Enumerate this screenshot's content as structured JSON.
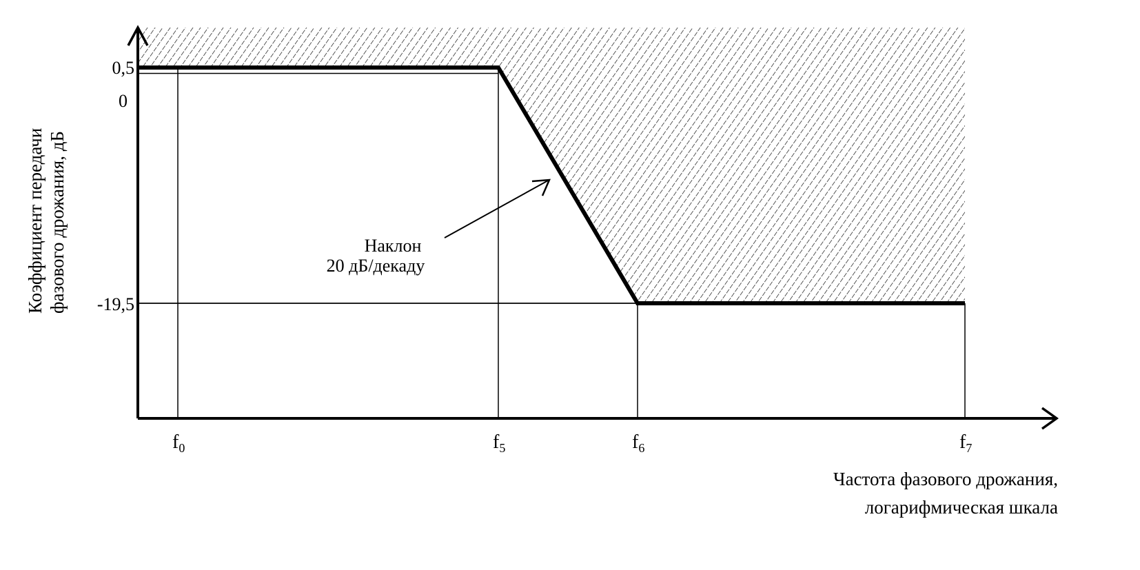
{
  "chart_data": {
    "type": "line",
    "xlabel_lines": [
      "Частота фазового дрожания,",
      "логарифмическая шкала"
    ],
    "ylabel_lines": [
      "Коэффициент передачи",
      "фазового дрожания, дБ"
    ],
    "x_scale": "log",
    "x_ticks": [
      {
        "base": "f",
        "sub": "0"
      },
      {
        "base": "f",
        "sub": "5"
      },
      {
        "base": "f",
        "sub": "6"
      },
      {
        "base": "f",
        "sub": "7"
      }
    ],
    "y_ticks": [
      "0,5",
      "0",
      "-19,5"
    ],
    "y_tick_values": [
      0.5,
      0,
      -19.5
    ],
    "series": [
      {
        "points": [
          {
            "x": "f0",
            "y": 0.5
          },
          {
            "x": "f5",
            "y": 0.5
          },
          {
            "x": "f6",
            "y": -19.5
          },
          {
            "x": "f7",
            "y": -19.5
          }
        ]
      }
    ],
    "shaded_region": "above curve (hatched)",
    "annotation": {
      "lines": [
        "Наклон",
        "20 дБ/декаду"
      ]
    },
    "grid": false,
    "colors": {
      "line": "#000000",
      "hatch": "#000000",
      "background": "#ffffff"
    }
  }
}
